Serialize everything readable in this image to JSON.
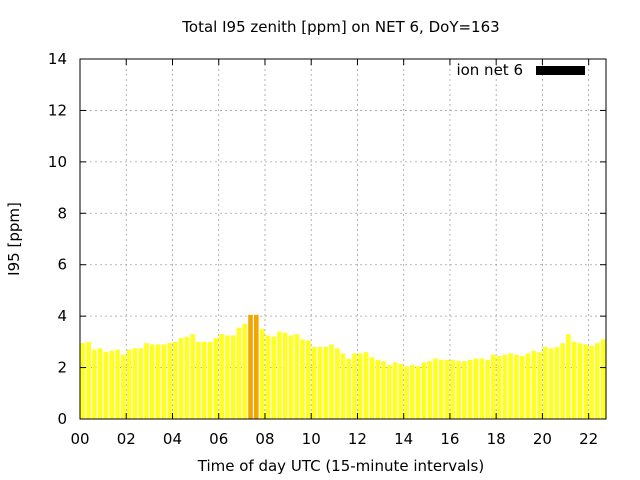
{
  "chart_data": {
    "type": "bar",
    "title": "Total I95 zenith [ppm] on NET 6, DoY=163",
    "xlabel": "Time of day UTC (15-minute intervals)",
    "ylabel": "I95 [ppm]",
    "xlim": [
      0,
      22.75
    ],
    "ylim": [
      0,
      14
    ],
    "grid": true,
    "legend_position": "top-right",
    "x_ticks": [
      "00",
      "02",
      "04",
      "06",
      "08",
      "10",
      "12",
      "14",
      "16",
      "18",
      "20",
      "22"
    ],
    "y_ticks": [
      "0",
      "2",
      "4",
      "6",
      "8",
      "10",
      "12",
      "14"
    ],
    "bar_interval_hours": 0.25,
    "colors": {
      "normal": "#ffff20",
      "highlight": "#f5a500",
      "legend": "#000000"
    },
    "series": [
      {
        "name": "ion net 6",
        "values": [
          2.95,
          3.0,
          2.7,
          2.75,
          2.6,
          2.65,
          2.7,
          2.5,
          2.7,
          2.75,
          2.75,
          2.95,
          2.9,
          2.9,
          2.9,
          2.95,
          3.0,
          3.15,
          3.2,
          3.3,
          3.0,
          3.0,
          3.0,
          3.15,
          3.3,
          3.25,
          3.25,
          3.55,
          3.7,
          4.05,
          4.05,
          3.5,
          3.25,
          3.2,
          3.4,
          3.35,
          3.25,
          3.3,
          3.1,
          3.05,
          2.8,
          2.8,
          2.8,
          2.9,
          2.75,
          2.55,
          2.35,
          2.55,
          2.55,
          2.6,
          2.4,
          2.3,
          2.25,
          2.1,
          2.2,
          2.15,
          2.05,
          2.1,
          2.05,
          2.2,
          2.25,
          2.35,
          2.3,
          2.3,
          2.3,
          2.25,
          2.25,
          2.3,
          2.35,
          2.35,
          2.3,
          2.5,
          2.45,
          2.5,
          2.55,
          2.5,
          2.45,
          2.55,
          2.65,
          2.6,
          2.8,
          2.75,
          2.8,
          2.95,
          3.3,
          3.0,
          2.95,
          2.9,
          2.85,
          2.95,
          3.1
        ],
        "highlight_indices": [
          29,
          30
        ]
      }
    ]
  }
}
